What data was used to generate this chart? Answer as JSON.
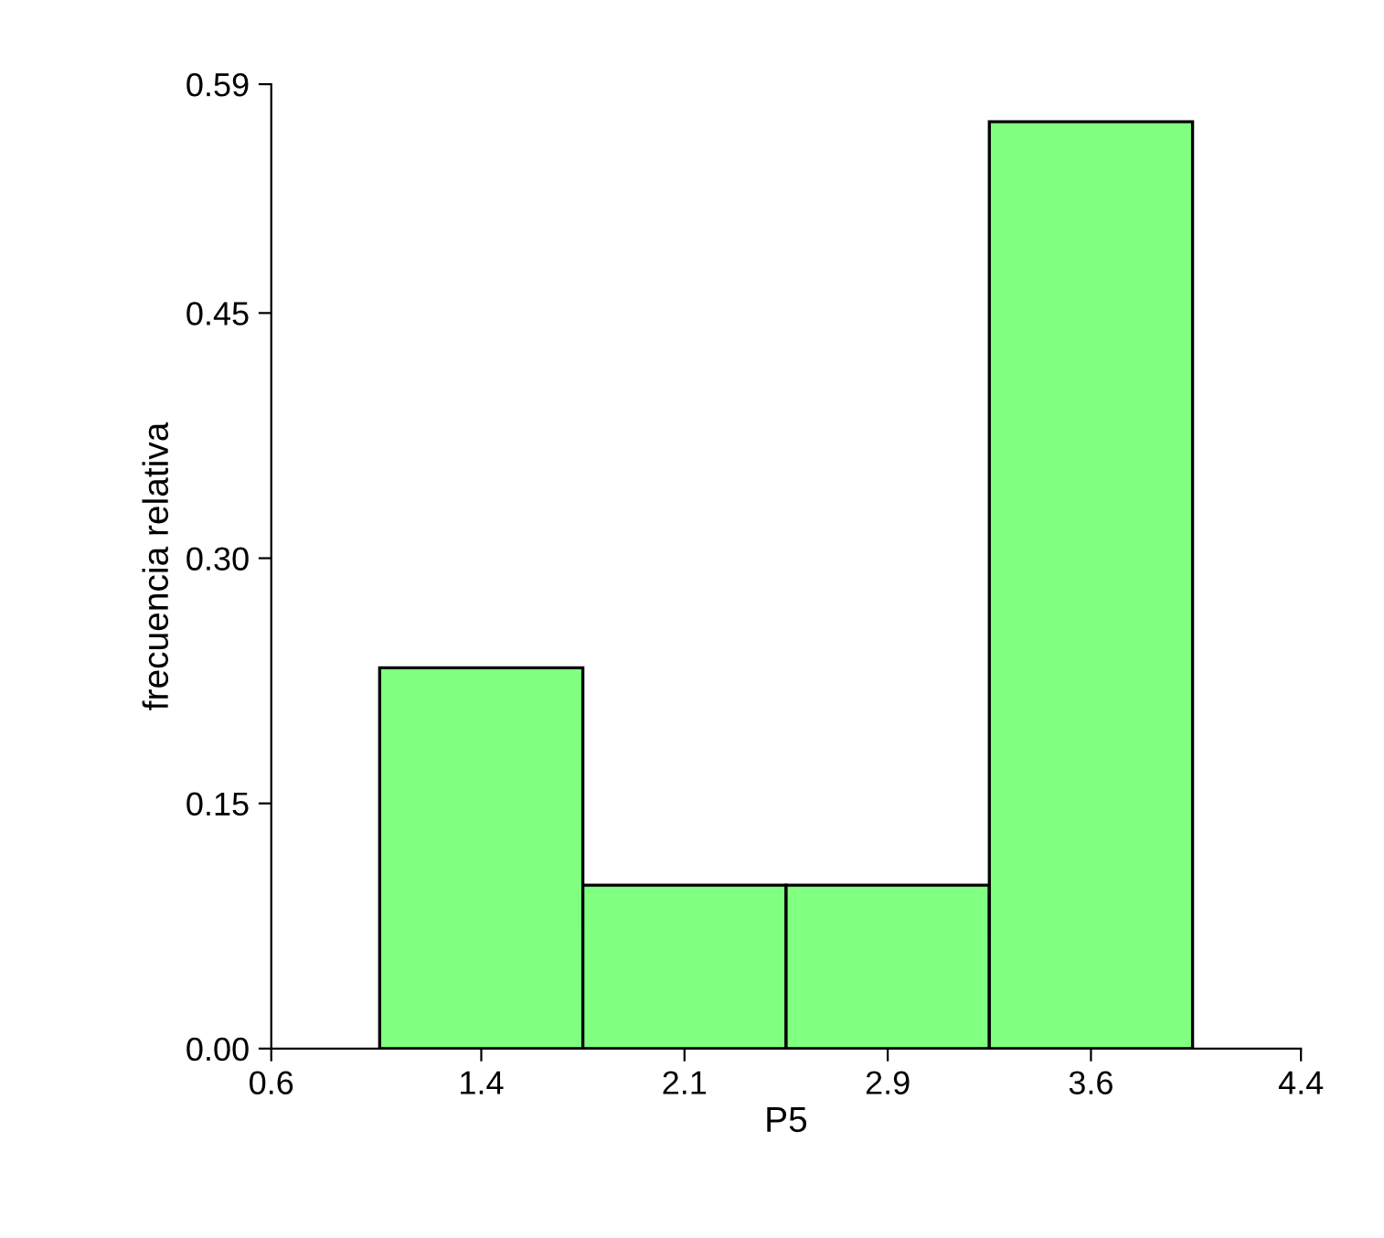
{
  "chart_data": {
    "type": "histogram",
    "xlabel": "P5",
    "ylabel": "frecuencia relativa",
    "bins": [
      1.0,
      1.75,
      2.5,
      3.25,
      4.0
    ],
    "values": [
      0.233,
      0.1,
      0.1,
      0.567
    ],
    "color": "#80ff80",
    "xlim": [
      0.6,
      4.4
    ],
    "xticks": [
      0.6,
      {
        "value": 1.375,
        "label": "1.4"
      },
      {
        "value": 2.125,
        "label": "2.1"
      },
      {
        "value": 2.875,
        "label": "2.9"
      },
      {
        "value": 3.625,
        "label": "3.6"
      },
      4.4
    ],
    "ylim": [
      0,
      0.59
    ],
    "yticks": [
      {
        "value": 0,
        "label": "0.00"
      },
      {
        "value": 0.15,
        "label": "0.15"
      },
      {
        "value": 0.3,
        "label": "0.30"
      },
      {
        "value": 0.45,
        "label": "0.45"
      },
      0.59
    ],
    "grid": false
  }
}
